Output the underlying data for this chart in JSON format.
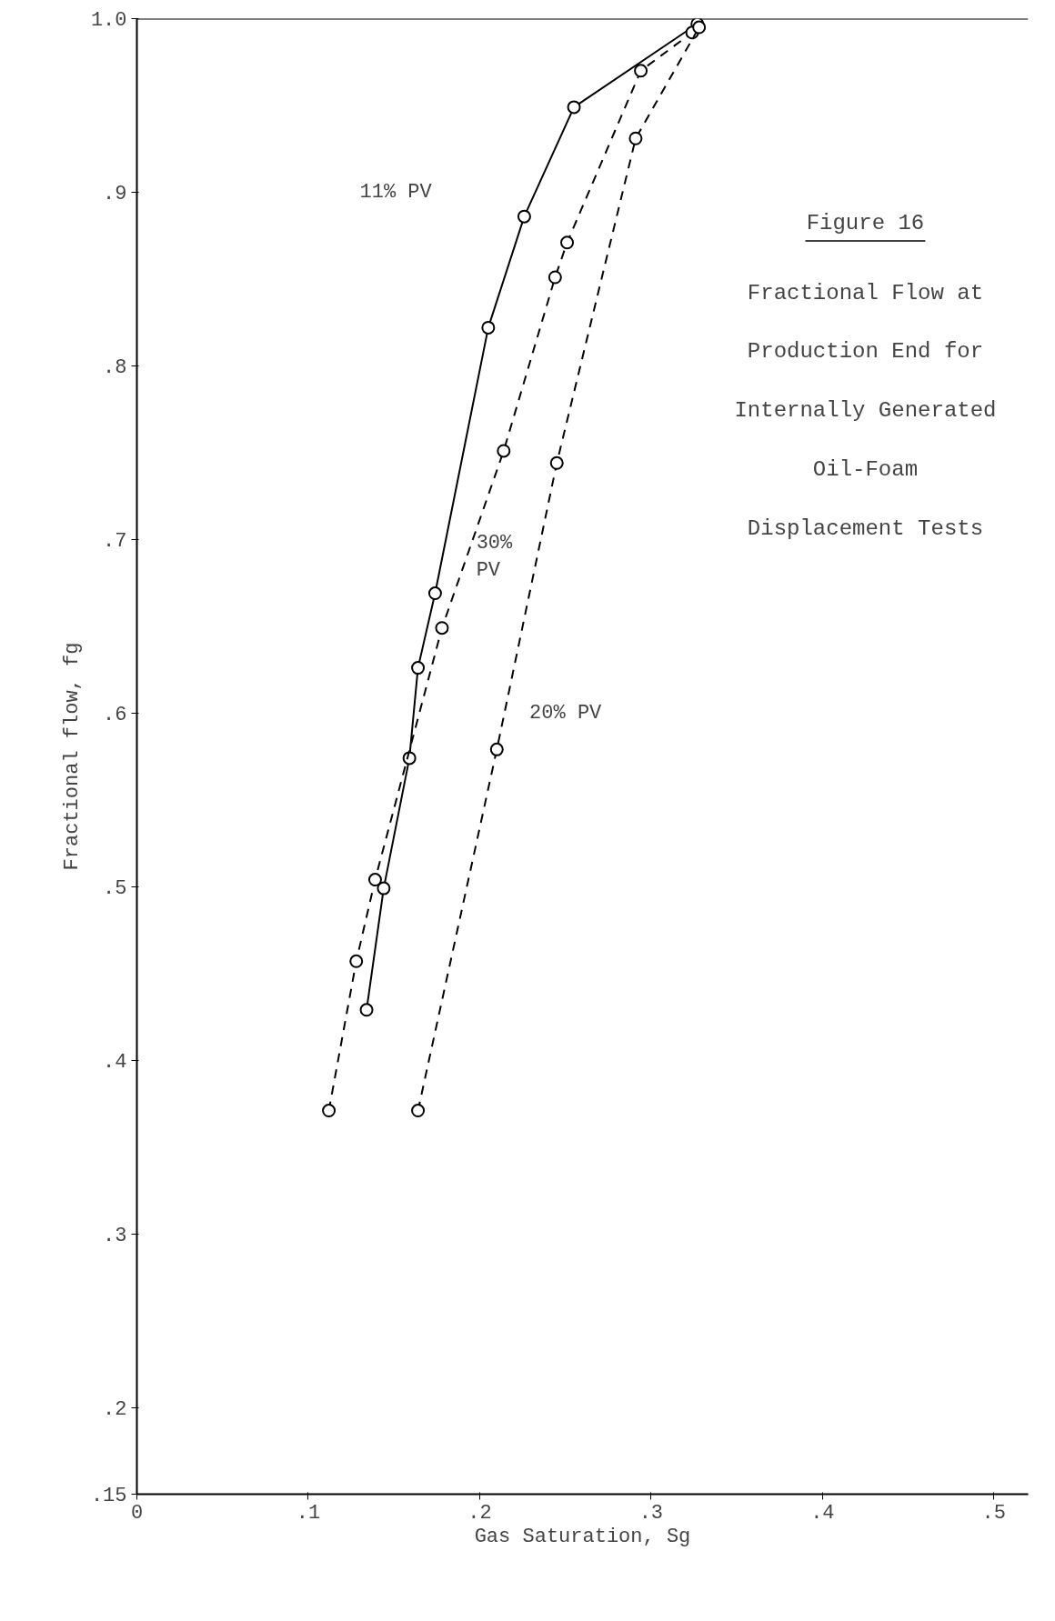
{
  "chart_data": {
    "type": "line",
    "title": "Figure 16",
    "subtitle": "Fractional Flow at Production End for Internally Generated Oil-Foam Displacement Tests",
    "xlabel": "Gas Saturation, Sg",
    "ylabel": "Fractional flow, fg",
    "xlim": [
      0,
      0.52
    ],
    "ylim": [
      0.15,
      1.0
    ],
    "xticks": [
      0,
      {
        "value": 0.1,
        "label": ".1"
      },
      {
        "value": 0.2,
        "label": ".2"
      },
      {
        "value": 0.3,
        "label": ".3"
      },
      {
        "value": 0.4,
        "label": ".4"
      },
      {
        "value": 0.5,
        "label": ".5"
      }
    ],
    "yticks": [
      {
        "value": 0.15,
        "label": ".15"
      },
      {
        "value": 0.2,
        "label": ".2"
      },
      {
        "value": 0.3,
        "label": ".3"
      },
      {
        "value": 0.4,
        "label": ".4"
      },
      {
        "value": 0.5,
        "label": ".5"
      },
      {
        "value": 0.6,
        "label": ".6"
      },
      {
        "value": 0.7,
        "label": ".7"
      },
      {
        "value": 0.8,
        "label": ".8"
      },
      {
        "value": 0.9,
        "label": ".9"
      },
      {
        "value": 1.0,
        "label": "1.0"
      }
    ],
    "grid": false,
    "marker": "circle",
    "series": [
      {
        "color": "#000000",
        "line_style": "solid",
        "x": [
          0.134,
          0.144,
          0.159,
          0.164,
          0.174,
          0.205,
          0.226,
          0.255,
          0.327
        ],
        "values": [
          0.429,
          0.499,
          0.574,
          0.626,
          0.669,
          0.822,
          0.886,
          0.949,
          0.997
        ]
      },
      {
        "color": "#000000",
        "line_style": "dashed",
        "x": [
          0.112,
          0.128,
          0.139,
          0.178,
          0.214,
          0.244,
          0.251,
          0.294,
          0.324
        ],
        "values": [
          0.371,
          0.457,
          0.504,
          0.649,
          0.751,
          0.851,
          0.871,
          0.97,
          0.992
        ]
      },
      {
        "color": "#000000",
        "line_style": "dashed",
        "x": [
          0.164,
          0.21,
          0.245,
          0.291,
          0.328
        ],
        "values": [
          0.371,
          0.579,
          0.744,
          0.931,
          0.995
        ]
      }
    ],
    "annotations": [
      "11% PV",
      "30%\nPV",
      "20% PV"
    ]
  }
}
